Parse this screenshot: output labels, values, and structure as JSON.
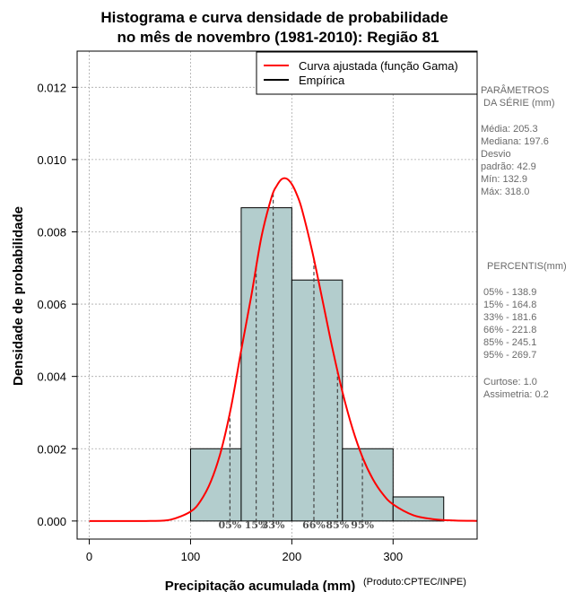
{
  "chart_data": {
    "type": "bar",
    "title": [
      "Histograma e curva densidade de probabilidade",
      "no mês de novembro (1981-2010): Região 81"
    ],
    "xlabel": "Precipitação acumulada (mm)",
    "ylabel": "Densidade de probabilidade",
    "credit": "(Produto:CPTEC/INPE)",
    "xlim": [
      -12,
      383
    ],
    "ylim": [
      -0.0005,
      0.013
    ],
    "xticks": [
      0,
      100,
      200,
      300
    ],
    "yticks": [
      0.0,
      0.002,
      0.004,
      0.006,
      0.008,
      0.01,
      0.012
    ],
    "ytick_labels": [
      "0.000",
      "0.002",
      "0.004",
      "0.006",
      "0.008",
      "0.010",
      "0.012"
    ],
    "grid": true,
    "bins": [
      {
        "from": 100,
        "to": 150,
        "density": 0.002
      },
      {
        "from": 150,
        "to": 200,
        "density": 0.008667
      },
      {
        "from": 200,
        "to": 250,
        "density": 0.006667
      },
      {
        "from": 250,
        "to": 300,
        "density": 0.002
      },
      {
        "from": 300,
        "to": 350,
        "density": 0.000667
      }
    ],
    "fitted_curve": {
      "name": "Curva ajustada (função Gama)",
      "color": "#ff0000",
      "x": [
        0,
        20,
        40,
        60,
        80,
        100,
        110,
        120,
        130,
        140,
        150,
        160,
        170,
        180,
        185,
        190,
        195,
        200,
        205,
        210,
        220,
        230,
        240,
        250,
        260,
        270,
        280,
        290,
        300,
        320,
        340,
        360,
        383
      ],
      "y": [
        0,
        0,
        0,
        2e-06,
        3.5e-05,
        0.00026,
        0.00056,
        0.00109,
        0.00193,
        0.00315,
        0.00472,
        0.00623,
        0.00786,
        0.00896,
        0.00927,
        0.00946,
        0.00947,
        0.00932,
        0.00903,
        0.00862,
        0.00748,
        0.00615,
        0.00479,
        0.00357,
        0.00255,
        0.00175,
        0.00116,
        0.00074,
        0.00046,
        0.00016,
        5e-05,
        1.4e-05,
        3e-06
      ]
    },
    "empirical": {
      "name": "Empírica",
      "color": "#000000"
    },
    "percentile_markers": [
      {
        "label": "05%",
        "x": 138.9
      },
      {
        "label": "15%",
        "x": 164.8
      },
      {
        "label": "33%",
        "x": 181.6
      },
      {
        "label": "66%",
        "x": 221.8
      },
      {
        "label": "85%",
        "x": 245.1
      },
      {
        "label": "95%",
        "x": 269.7
      }
    ],
    "bar_color": "#b3cdcd"
  },
  "side_panel": {
    "params_heading": [
      "PARÂMETROS",
      " DA SÉRIE (mm)"
    ],
    "params": [
      "Média:  205.3",
      "Mediana:  197.6",
      "Desvio",
      "padrão:  42.9",
      "Mín:  132.9",
      "Máx:  318.0"
    ],
    "percentis_heading": " PERCENTIS(mm)",
    "percentis": [
      "05% -  138.9",
      "15% -  164.8",
      "33% -  181.6",
      "66% -  221.8",
      "85% -  245.1",
      "95% -  269.7"
    ],
    "shape": [
      "Curtose:  1.0",
      "Assimetria:  0.2"
    ]
  }
}
